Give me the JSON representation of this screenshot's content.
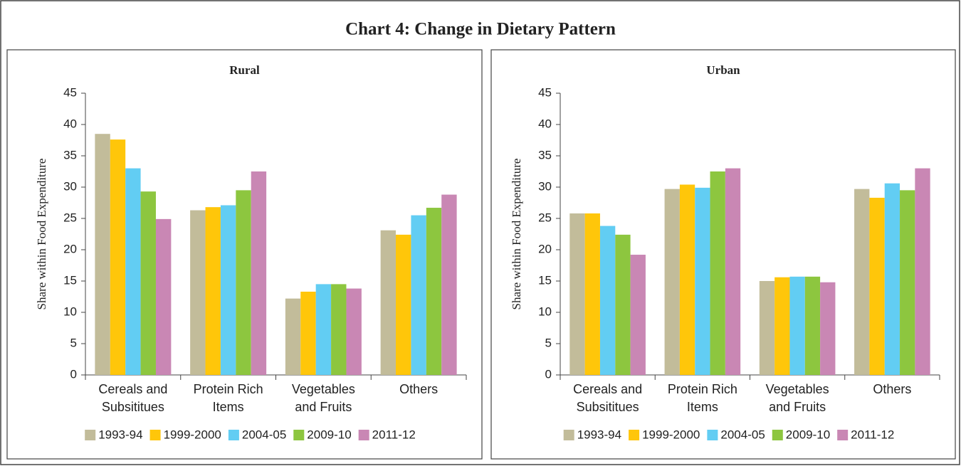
{
  "title": "Chart 4: Change in Dietary Pattern",
  "chart_data": [
    {
      "type": "bar",
      "title": "Rural",
      "ylabel": "Share within Food Expenditure",
      "categories": [
        "Cereals and Subsititues",
        "Protein Rich Items",
        "Vegetables and Fruits",
        "Others"
      ],
      "series": [
        {
          "name": "1993-94",
          "color": "#c2bc9a",
          "values": [
            38.5,
            26.3,
            12.2,
            23.1
          ]
        },
        {
          "name": "1999-2000",
          "color": "#ffc60a",
          "values": [
            37.6,
            26.8,
            13.3,
            22.4
          ]
        },
        {
          "name": "2004-05",
          "color": "#62cdf3",
          "values": [
            33.0,
            27.1,
            14.5,
            25.5
          ]
        },
        {
          "name": "2009-10",
          "color": "#8dc63f",
          "values": [
            29.3,
            29.5,
            14.5,
            26.7
          ]
        },
        {
          "name": "2011-12",
          "color": "#c987b4",
          "values": [
            24.9,
            32.5,
            13.8,
            28.8
          ]
        }
      ],
      "ylim": [
        0,
        45
      ],
      "yticks": [
        0,
        5,
        10,
        15,
        20,
        25,
        30,
        35,
        40,
        45
      ],
      "legend": "bottom"
    },
    {
      "type": "bar",
      "title": "Urban",
      "ylabel": "Share within Food Expenditure",
      "categories": [
        "Cereals and Subsititues",
        "Protein Rich Items",
        "Vegetables and Fruits",
        "Others"
      ],
      "series": [
        {
          "name": "1993-94",
          "color": "#c2bc9a",
          "values": [
            25.8,
            29.7,
            15.0,
            29.7
          ]
        },
        {
          "name": "1999-2000",
          "color": "#ffc60a",
          "values": [
            25.8,
            30.4,
            15.6,
            28.3
          ]
        },
        {
          "name": "2004-05",
          "color": "#62cdf3",
          "values": [
            23.8,
            29.9,
            15.7,
            30.6
          ]
        },
        {
          "name": "2009-10",
          "color": "#8dc63f",
          "values": [
            22.4,
            32.5,
            15.7,
            29.5
          ]
        },
        {
          "name": "2011-12",
          "color": "#c987b4",
          "values": [
            19.2,
            33.0,
            14.8,
            33.0
          ]
        }
      ],
      "ylim": [
        0,
        45
      ],
      "yticks": [
        0,
        5,
        10,
        15,
        20,
        25,
        30,
        35,
        40,
        45
      ],
      "legend": "bottom"
    }
  ]
}
